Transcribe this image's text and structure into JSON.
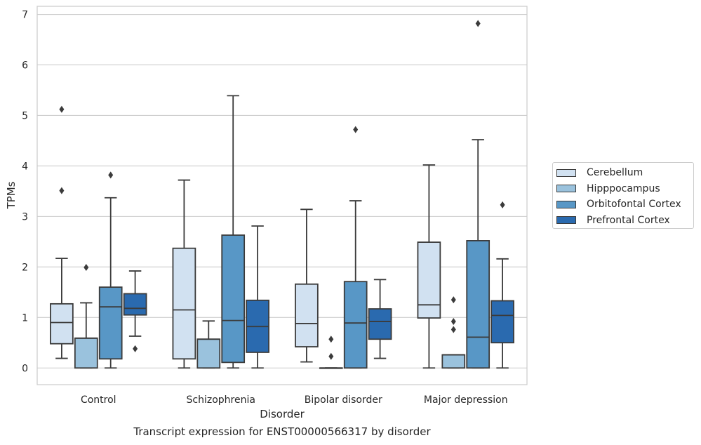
{
  "caption": "Transcript expression for ENST00000566317 by disorder",
  "chart_data": {
    "type": "boxplot",
    "xlabel": "Disorder",
    "ylabel": "TPMs",
    "ylim": [
      -0.33,
      7.16
    ],
    "yticks": [
      0,
      1,
      2,
      3,
      4,
      5,
      6,
      7
    ],
    "grid": "horizontal",
    "legend_position": "right",
    "categories": [
      "Control",
      "Schizophrenia",
      "Bipolar disorder",
      "Major depression"
    ],
    "series": [
      {
        "name": "Cerebellum",
        "color": "#d1e1f1",
        "boxes": [
          {
            "whislo": 0.19,
            "q1": 0.48,
            "med": 0.9,
            "q3": 1.27,
            "whishi": 2.17,
            "fliers": [
              3.51,
              5.12
            ]
          },
          {
            "whislo": 0.0,
            "q1": 0.18,
            "med": 1.15,
            "q3": 2.37,
            "whishi": 3.72,
            "fliers": []
          },
          {
            "whislo": 0.12,
            "q1": 0.42,
            "med": 0.88,
            "q3": 1.66,
            "whishi": 3.14,
            "fliers": []
          },
          {
            "whislo": 0.0,
            "q1": 0.99,
            "med": 1.25,
            "q3": 2.49,
            "whishi": 4.02,
            "fliers": []
          }
        ]
      },
      {
        "name": "Hipppocampus",
        "color": "#9ac2dd",
        "boxes": [
          {
            "whislo": 0.0,
            "q1": 0.0,
            "med": 0.59,
            "q3": 0.59,
            "whishi": 1.29,
            "fliers": [
              1.99
            ]
          },
          {
            "whislo": 0.0,
            "q1": 0.0,
            "med": 0.57,
            "q3": 0.57,
            "whishi": 0.93,
            "fliers": []
          },
          {
            "whislo": 0.0,
            "q1": 0.0,
            "med": 0.0,
            "q3": 0.0,
            "whishi": 0.0,
            "fliers": [
              0.23,
              0.57
            ]
          },
          {
            "whislo": 0.0,
            "q1": 0.0,
            "med": 0.26,
            "q3": 0.26,
            "whishi": 0.26,
            "fliers": [
              0.76,
              0.92,
              1.35
            ]
          }
        ]
      },
      {
        "name": "Orbitofontal Cortex",
        "color": "#5897c6",
        "boxes": [
          {
            "whislo": 0.0,
            "q1": 0.18,
            "med": 1.21,
            "q3": 1.6,
            "whishi": 3.37,
            "fliers": [
              3.82
            ]
          },
          {
            "whislo": 0.0,
            "q1": 0.11,
            "med": 0.94,
            "q3": 2.63,
            "whishi": 5.39,
            "fliers": []
          },
          {
            "whislo": 0.0,
            "q1": 0.0,
            "med": 0.89,
            "q3": 1.71,
            "whishi": 3.31,
            "fliers": [
              4.72
            ]
          },
          {
            "whislo": 0.0,
            "q1": 0.0,
            "med": 0.61,
            "q3": 2.52,
            "whishi": 4.52,
            "fliers": [
              6.82
            ]
          }
        ]
      },
      {
        "name": "Prefrontal Cortex",
        "color": "#2a6aaf",
        "boxes": [
          {
            "whislo": 0.63,
            "q1": 1.05,
            "med": 1.18,
            "q3": 1.47,
            "whishi": 1.92,
            "fliers": [
              0.38
            ]
          },
          {
            "whislo": 0.0,
            "q1": 0.31,
            "med": 0.82,
            "q3": 1.34,
            "whishi": 2.81,
            "fliers": []
          },
          {
            "whislo": 0.19,
            "q1": 0.57,
            "med": 0.92,
            "q3": 1.17,
            "whishi": 1.75,
            "fliers": []
          },
          {
            "whislo": 0.0,
            "q1": 0.5,
            "med": 1.04,
            "q3": 1.33,
            "whishi": 2.16,
            "fliers": [
              3.23
            ]
          }
        ]
      }
    ]
  }
}
